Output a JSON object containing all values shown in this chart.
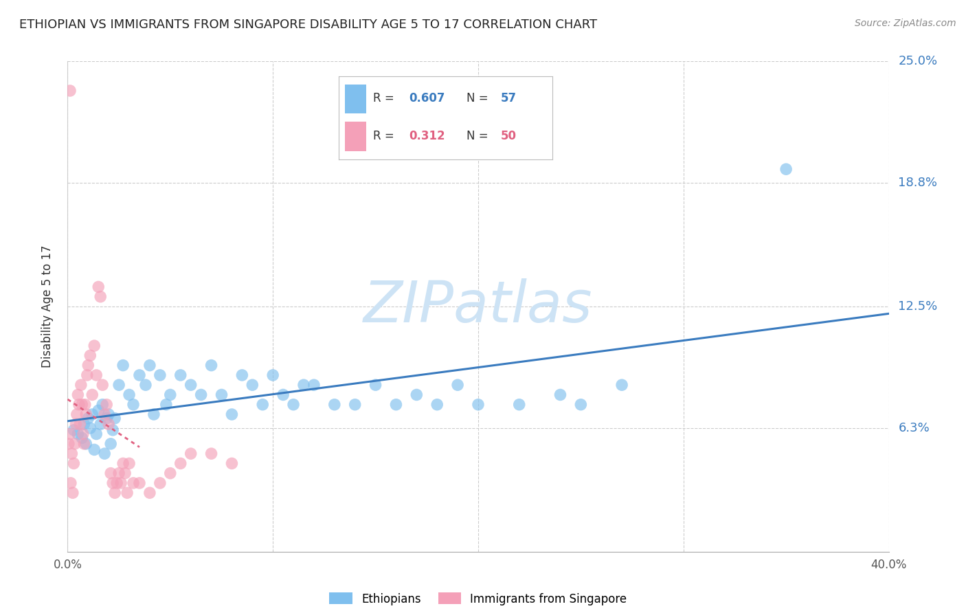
{
  "title": "ETHIOPIAN VS IMMIGRANTS FROM SINGAPORE DISABILITY AGE 5 TO 17 CORRELATION CHART",
  "source": "Source: ZipAtlas.com",
  "ylabel": "Disability Age 5 to 17",
  "xmin": 0.0,
  "xmax": 40.0,
  "ymin": 0.0,
  "ymax": 25.0,
  "yticks": [
    6.3,
    12.5,
    18.8,
    25.0
  ],
  "ytick_labels": [
    "6.3%",
    "12.5%",
    "18.8%",
    "25.0%"
  ],
  "grid_color": "#cccccc",
  "background_color": "#ffffff",
  "watermark": "ZIPatlas",
  "watermark_color": "#cde3f5",
  "legend_R1": "0.607",
  "legend_N1": "57",
  "legend_R2": "0.312",
  "legend_N2": "50",
  "blue_color": "#7fbfee",
  "pink_color": "#f4a0b8",
  "trend_blue": "#3a7bbf",
  "trend_pink": "#e06080",
  "title_fontsize": 13,
  "ethiopians_x": [
    0.3,
    0.5,
    0.7,
    0.8,
    0.9,
    1.0,
    1.1,
    1.2,
    1.3,
    1.4,
    1.5,
    1.6,
    1.7,
    1.8,
    1.9,
    2.0,
    2.1,
    2.2,
    2.3,
    2.5,
    2.7,
    3.0,
    3.2,
    3.5,
    3.8,
    4.0,
    4.2,
    4.5,
    4.8,
    5.0,
    5.5,
    6.0,
    6.5,
    7.0,
    7.5,
    8.0,
    8.5,
    9.0,
    9.5,
    10.0,
    10.5,
    11.0,
    11.5,
    12.0,
    13.0,
    14.0,
    15.0,
    16.0,
    17.0,
    18.0,
    19.0,
    20.0,
    22.0,
    24.0,
    25.0,
    27.0,
    35.0
  ],
  "ethiopians_y": [
    6.2,
    6.0,
    5.8,
    6.5,
    5.5,
    6.8,
    6.3,
    7.0,
    5.2,
    6.0,
    7.2,
    6.5,
    7.5,
    5.0,
    6.8,
    7.0,
    5.5,
    6.2,
    6.8,
    8.5,
    9.5,
    8.0,
    7.5,
    9.0,
    8.5,
    9.5,
    7.0,
    9.0,
    7.5,
    8.0,
    9.0,
    8.5,
    8.0,
    9.5,
    8.0,
    7.0,
    9.0,
    8.5,
    7.5,
    9.0,
    8.0,
    7.5,
    8.5,
    8.5,
    7.5,
    7.5,
    8.5,
    7.5,
    8.0,
    7.5,
    8.5,
    7.5,
    7.5,
    8.0,
    7.5,
    8.5,
    19.5
  ],
  "singapore_x": [
    0.05,
    0.1,
    0.15,
    0.2,
    0.25,
    0.3,
    0.35,
    0.4,
    0.45,
    0.5,
    0.55,
    0.6,
    0.65,
    0.7,
    0.75,
    0.8,
    0.85,
    0.9,
    0.95,
    1.0,
    1.1,
    1.2,
    1.3,
    1.4,
    1.5,
    1.6,
    1.7,
    1.8,
    1.9,
    2.0,
    2.1,
    2.2,
    2.3,
    2.4,
    2.5,
    2.6,
    2.7,
    2.8,
    2.9,
    3.0,
    3.2,
    3.5,
    4.0,
    4.5,
    5.0,
    5.5,
    6.0,
    7.0,
    8.0,
    0.12
  ],
  "singapore_y": [
    5.5,
    6.0,
    3.5,
    5.0,
    3.0,
    4.5,
    5.5,
    6.5,
    7.0,
    8.0,
    7.5,
    6.5,
    8.5,
    7.5,
    6.0,
    5.5,
    7.5,
    7.0,
    9.0,
    9.5,
    10.0,
    8.0,
    10.5,
    9.0,
    13.5,
    13.0,
    8.5,
    7.0,
    7.5,
    6.5,
    4.0,
    3.5,
    3.0,
    3.5,
    4.0,
    3.5,
    4.5,
    4.0,
    3.0,
    4.5,
    3.5,
    3.5,
    3.0,
    3.5,
    4.0,
    4.5,
    5.0,
    5.0,
    4.5,
    23.5
  ]
}
